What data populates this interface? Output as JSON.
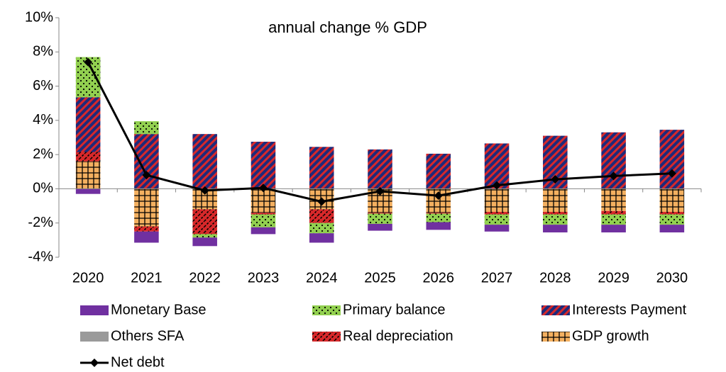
{
  "chart_data": {
    "type": "stacked-bar-line",
    "title": "annual change % GDP",
    "categories": [
      "2020",
      "2021",
      "2022",
      "2023",
      "2024",
      "2025",
      "2026",
      "2027",
      "2028",
      "2029",
      "2030"
    ],
    "series": [
      {
        "name": "Monetary Base",
        "color": "#7030a0",
        "pattern": "solid",
        "values": [
          -0.3,
          -0.65,
          -0.5,
          -0.4,
          -0.55,
          -0.4,
          -0.45,
          -0.4,
          -0.45,
          -0.45,
          -0.45
        ]
      },
      {
        "name": "Primary balance",
        "color": "#92d050",
        "pattern": "dots",
        "values": [
          2.35,
          0.75,
          -0.2,
          -0.75,
          -0.6,
          -0.6,
          -0.5,
          -0.6,
          -0.6,
          -0.6,
          -0.6
        ]
      },
      {
        "name": "Interests Payment",
        "color": "#1f2a7a",
        "pattern": "stripes",
        "values": [
          3.2,
          3.2,
          3.2,
          2.75,
          2.45,
          2.3,
          2.05,
          2.65,
          3.1,
          3.3,
          3.45
        ]
      },
      {
        "name": "Others SFA",
        "color": "#9a9a9a",
        "pattern": "solid",
        "values": [
          0,
          0,
          0,
          0,
          0,
          0,
          0,
          0,
          0,
          0,
          0
        ]
      },
      {
        "name": "Real depreciation",
        "color": "#d8282a",
        "pattern": "dashes",
        "values": [
          0.55,
          -0.3,
          -1.45,
          -0.1,
          -0.8,
          -0.05,
          -0.05,
          -0.15,
          -0.15,
          -0.2,
          -0.15
        ]
      },
      {
        "name": "GDP growth",
        "color": "#f4b060",
        "pattern": "grid",
        "values": [
          1.6,
          -2.2,
          -1.2,
          -1.4,
          -1.2,
          -1.4,
          -1.4,
          -1.35,
          -1.35,
          -1.3,
          -1.35
        ]
      },
      {
        "name": "Net debt",
        "color": "#000000",
        "kind": "line",
        "values": [
          7.4,
          0.8,
          -0.1,
          0.05,
          -0.75,
          -0.15,
          -0.4,
          0.2,
          0.55,
          0.75,
          0.9
        ]
      }
    ],
    "ylim": [
      -4,
      10
    ],
    "yticks": [
      {
        "value": -4,
        "label": "-4%"
      },
      {
        "value": -2,
        "label": "-2%"
      },
      {
        "value": 0,
        "label": "0%"
      },
      {
        "value": 2,
        "label": "2%"
      },
      {
        "value": 4,
        "label": "4%"
      },
      {
        "value": 6,
        "label": "6%"
      },
      {
        "value": 8,
        "label": "8%"
      },
      {
        "value": 10,
        "label": "10%"
      }
    ],
    "grid": false,
    "legend": "bottom"
  }
}
